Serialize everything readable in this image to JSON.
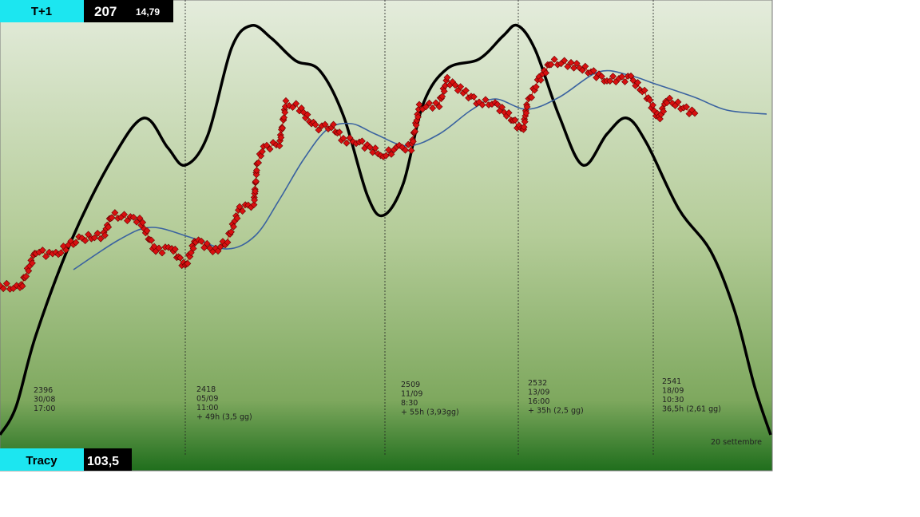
{
  "header": {
    "label": "T+1",
    "value": "207",
    "sub_value": "14,79"
  },
  "footer": {
    "label": "Tracy",
    "value": "103,5"
  },
  "annotations": [
    [
      "2396",
      "30/08",
      "17:00"
    ],
    [
      "2418",
      "05/09",
      "11:00",
      "+ 49h (3,5 gg)"
    ],
    [
      "2509",
      "11/09",
      "8:30",
      "+ 55h (3,93gg)"
    ],
    [
      "2532",
      "13/09",
      "16:00",
      "+ 35h (2,5 gg)"
    ],
    [
      "2541",
      "18/09",
      "10:30",
      "36,5h (2,61 gg)"
    ]
  ],
  "date_note": "20 settembre"
}
